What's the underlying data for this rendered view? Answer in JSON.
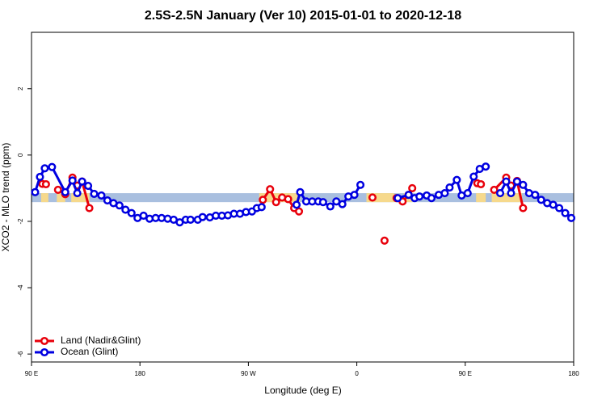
{
  "chart_data": {
    "type": "line",
    "title": "2.5S-2.5N January (Ver 10)   2015-01-01 to 2020-12-18",
    "xlabel": "Longitude (deg E)",
    "ylabel": "XCO2 - MLO trend (ppm)",
    "xlim": [
      90,
      540
    ],
    "ylim": [
      -6.24,
      3.7
    ],
    "xticks": [
      {
        "value": 90,
        "label": "90 E"
      },
      180,
      {
        "value": 270,
        "label": "90 W"
      },
      {
        "value": 360,
        "label": "0"
      },
      {
        "value": 450,
        "label": "90 E"
      },
      {
        "value": 540,
        "label": "180"
      }
    ],
    "yticks": [
      -6,
      -4,
      -2,
      0,
      2
    ],
    "legend": "bottomleft",
    "reference_band": {
      "ylim": [
        -1.42,
        -1.15
      ],
      "color": "#a9bfdf"
    },
    "land_bands": {
      "color": "#f6d98c",
      "x": [
        [
          98,
          104
        ],
        [
          111,
          118
        ],
        [
          123,
          138
        ],
        [
          279,
          313
        ],
        [
          368,
          391
        ],
        [
          399,
          406
        ],
        [
          459,
          467
        ],
        [
          472,
          497
        ]
      ]
    },
    "series": [
      {
        "name": "Land (Nadir&Glint)",
        "color": "#e8000b",
        "x": [
          99,
          102,
          null,
          112,
          118,
          124,
          128,
          132,
          138,
          null,
          282,
          288,
          293,
          298,
          303,
          308,
          312,
          null,
          373,
          null,
          383,
          null,
          393,
          398,
          403,
          406,
          null,
          460,
          463,
          null,
          474,
          484,
          488,
          493,
          498
        ],
        "values": [
          -0.87,
          -0.88,
          null,
          -1.05,
          -1.18,
          -0.68,
          -0.92,
          -0.8,
          -1.6,
          null,
          -1.35,
          -1.03,
          -1.42,
          -1.28,
          -1.33,
          -1.6,
          -1.7,
          null,
          -1.28,
          null,
          -2.58,
          null,
          -1.3,
          -1.4,
          -1.2,
          -1.0,
          null,
          -0.85,
          -0.88,
          null,
          -1.05,
          -0.68,
          -0.92,
          -0.78,
          -1.6
        ]
      },
      {
        "name": "Ocean (Glint)",
        "color": "#0000e0",
        "x": [
          93,
          97,
          101,
          107,
          118,
          124,
          128,
          132,
          137,
          142,
          148,
          153,
          158,
          163,
          168,
          173,
          178,
          183,
          188,
          193,
          198,
          203,
          208,
          213,
          218,
          222,
          228,
          232,
          238,
          243,
          248,
          253,
          258,
          263,
          268,
          273,
          277,
          281,
          null,
          310,
          313,
          318,
          323,
          328,
          332,
          338,
          343,
          348,
          353,
          358,
          363,
          null,
          394,
          403,
          408,
          412,
          418,
          422,
          428,
          433,
          437,
          443,
          447,
          452,
          457,
          462,
          467,
          null,
          479,
          484,
          488,
          493,
          498,
          503,
          508,
          513,
          518,
          523,
          528,
          533,
          538
        ],
        "values": [
          -1.12,
          -0.66,
          -0.4,
          -0.36,
          -1.12,
          -0.77,
          -1.15,
          -0.8,
          -0.93,
          -1.17,
          -1.22,
          -1.37,
          -1.45,
          -1.52,
          -1.65,
          -1.75,
          -1.9,
          -1.83,
          -1.92,
          -1.9,
          -1.9,
          -1.92,
          -1.95,
          -2.03,
          -1.95,
          -1.95,
          -1.95,
          -1.87,
          -1.88,
          -1.83,
          -1.83,
          -1.82,
          -1.77,
          -1.77,
          -1.72,
          -1.7,
          -1.6,
          -1.57,
          null,
          -1.5,
          -1.12,
          -1.4,
          -1.4,
          -1.4,
          -1.42,
          -1.55,
          -1.4,
          -1.48,
          -1.25,
          -1.2,
          -0.9,
          null,
          -1.3,
          -1.2,
          -1.3,
          -1.25,
          -1.22,
          -1.3,
          -1.2,
          -1.15,
          -0.98,
          -0.75,
          -1.22,
          -1.15,
          -0.65,
          -0.42,
          -0.35,
          null,
          -1.15,
          -0.8,
          -1.15,
          -0.8,
          -0.9,
          -1.15,
          -1.2,
          -1.35,
          -1.45,
          -1.5,
          -1.6,
          -1.75,
          -1.9
        ]
      }
    ]
  }
}
